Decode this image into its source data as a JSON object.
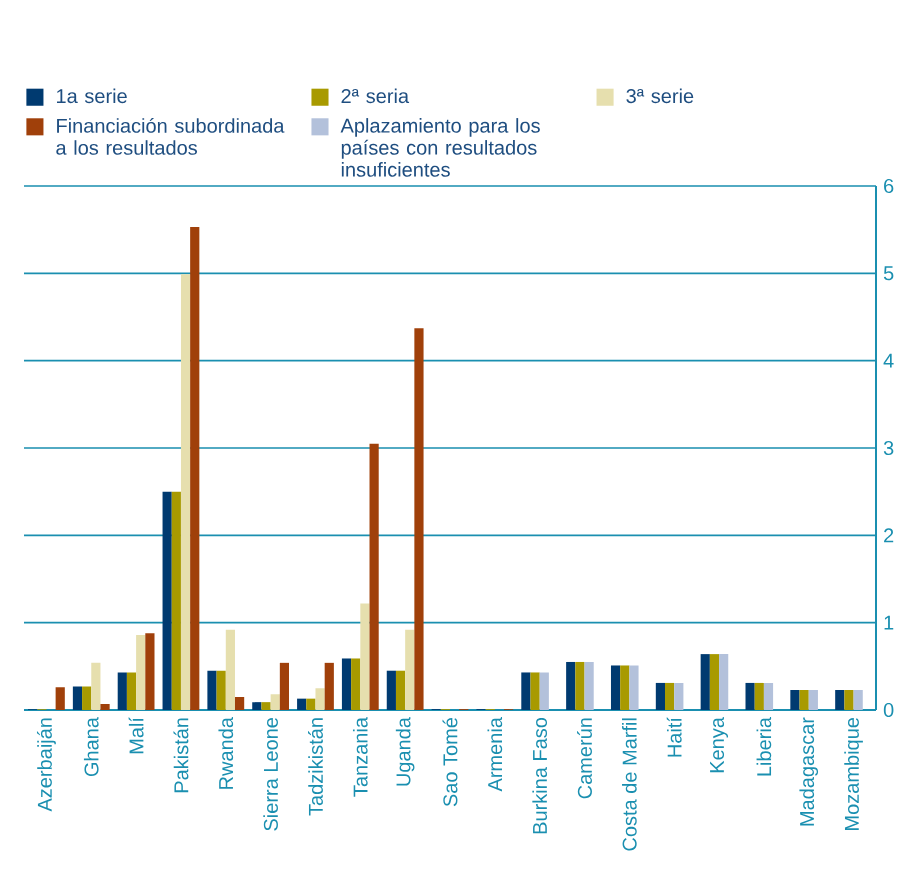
{
  "chart_data": {
    "type": "bar",
    "categories": [
      "Azerbaiján",
      "Ghana",
      "Malí",
      "Pakistán",
      "Rwanda",
      "Sierra Leone",
      "Tadzikistán",
      "Tanzania",
      "Uganda",
      "Sao Tomé",
      "Armenia",
      "Burkina Faso",
      "Camerún",
      "Costa de Marfil",
      "Haití",
      "Kenya",
      "Liberia",
      "Madagascar",
      "Mozambique"
    ],
    "series": [
      {
        "name": "1a serie",
        "color": "#003a70",
        "values": [
          0.01,
          0.27,
          0.43,
          2.5,
          0.45,
          0.09,
          0.13,
          0.59,
          0.45,
          0.01,
          0.01,
          0.43,
          0.55,
          0.51,
          0.31,
          0.64,
          0.31,
          0.23,
          0.23
        ]
      },
      {
        "name": "2ª seria",
        "color": "#a89a00",
        "values": [
          0.01,
          0.27,
          0.43,
          2.5,
          0.45,
          0.09,
          0.13,
          0.59,
          0.45,
          0.01,
          0.01,
          0.43,
          0.55,
          0.51,
          0.31,
          0.64,
          0.31,
          0.23,
          0.23
        ]
      },
      {
        "name": "3ª serie",
        "color": "#e6dfae",
        "values": [
          null,
          0.54,
          0.86,
          4.99,
          0.92,
          0.18,
          0.25,
          1.22,
          0.92,
          null,
          null,
          null,
          null,
          null,
          null,
          null,
          null,
          null,
          null
        ]
      },
      {
        "name": "Financiación subordinada a los resultados",
        "color": "#a0400a",
        "values": [
          0.26,
          0.07,
          0.88,
          5.53,
          0.15,
          0.54,
          0.54,
          3.05,
          4.37,
          0.01,
          0.01,
          null,
          null,
          null,
          null,
          null,
          null,
          null,
          null
        ]
      },
      {
        "name": "Aplazamiento para los países con resultados insuficientes",
        "color": "#b3c1db",
        "values": [
          null,
          null,
          null,
          null,
          null,
          null,
          null,
          null,
          null,
          null,
          null,
          0.43,
          0.55,
          0.51,
          0.31,
          0.64,
          0.31,
          0.23,
          0.23
        ]
      }
    ],
    "ylim": [
      0,
      6
    ],
    "yticks": [
      0,
      1,
      2,
      3,
      4,
      5,
      6
    ],
    "grid": "y",
    "legend": "top"
  }
}
